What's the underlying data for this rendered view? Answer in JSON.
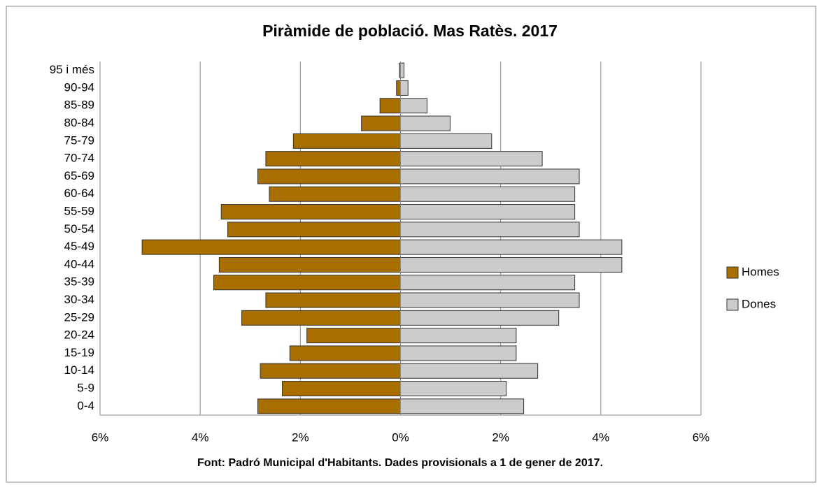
{
  "chart_data": {
    "type": "pyramid",
    "title": "Piràmide de població.  Mas Ratès. 2017",
    "source": "Font: Padró Municipal  d'Habitants. Dades provisionals  a 1 de gener de 2017.",
    "categories": [
      "0-4",
      "5-9",
      "10-14",
      "15-19",
      "20-24",
      "25-29",
      "30-34",
      "35-39",
      "40-44",
      "45-49",
      "50-54",
      "55-59",
      "60-64",
      "65-69",
      "70-74",
      "75-79",
      "80-84",
      "85-89",
      "90-94",
      "95 i més"
    ],
    "series": [
      {
        "name": "Homes",
        "color": "#a86e00",
        "values": [
          -2.85,
          -2.36,
          -2.8,
          -2.21,
          -1.87,
          -3.17,
          -2.69,
          -3.73,
          -3.62,
          -5.16,
          -3.45,
          -3.58,
          -2.62,
          -2.85,
          -2.69,
          -2.14,
          -0.78,
          -0.41,
          -0.08,
          -0.02
        ]
      },
      {
        "name": "Dones",
        "color": "#cccccc",
        "values": [
          2.46,
          2.11,
          2.74,
          2.31,
          2.31,
          3.16,
          3.57,
          3.48,
          4.42,
          4.42,
          3.57,
          3.48,
          3.48,
          3.57,
          2.83,
          1.82,
          0.99,
          0.53,
          0.15,
          0.07
        ]
      }
    ],
    "xlim": [
      -6,
      6
    ],
    "xticks": [
      {
        "value": -6,
        "label": "6%"
      },
      {
        "value": -4,
        "label": "4%"
      },
      {
        "value": -2,
        "label": "2%"
      },
      {
        "value": 0,
        "label": "0%"
      },
      {
        "value": 2,
        "label": "2%"
      },
      {
        "value": 4,
        "label": "4%"
      },
      {
        "value": 6,
        "label": "6%"
      }
    ],
    "grid": true,
    "legend": "right"
  }
}
